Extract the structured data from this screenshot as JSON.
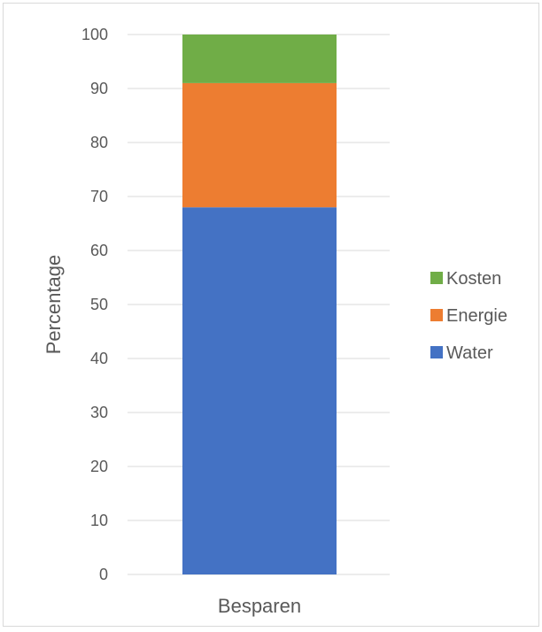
{
  "chart_data": {
    "type": "bar",
    "stacked": true,
    "categories": [
      "Besparen"
    ],
    "series": [
      {
        "name": "Water",
        "values": [
          68
        ],
        "color": "#4472C4"
      },
      {
        "name": "Energie",
        "values": [
          23
        ],
        "color": "#ED7D31"
      },
      {
        "name": "Kosten",
        "values": [
          9
        ],
        "color": "#70AD47"
      }
    ],
    "title": "",
    "xlabel": "",
    "ylabel": "Percentage",
    "ylim": [
      0,
      100
    ],
    "yticks": [
      "0",
      "10",
      "20",
      "30",
      "40",
      "50",
      "60",
      "70",
      "80",
      "90",
      "100"
    ],
    "grid": true,
    "legend_position": "right",
    "legend_order": [
      "Kosten",
      "Energie",
      "Water"
    ]
  }
}
